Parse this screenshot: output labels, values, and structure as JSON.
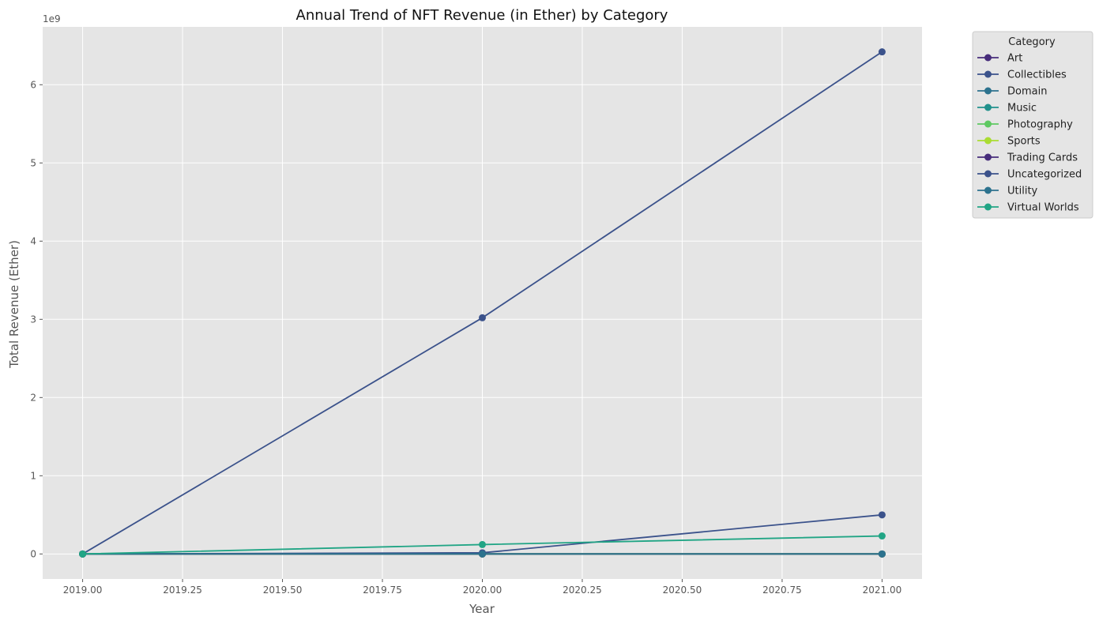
{
  "chart_data": {
    "type": "line",
    "title": "Annual Trend of NFT Revenue (in Ether) by Category",
    "xlabel": "Year",
    "ylabel": "Total Revenue (Ether)",
    "y_offset_label": "1e9",
    "xlim": [
      2018.9,
      2021.1
    ],
    "ylim": [
      -320000000,
      6740000000
    ],
    "x_ticks": [
      2019.0,
      2019.25,
      2019.5,
      2019.75,
      2020.0,
      2020.25,
      2020.5,
      2020.75,
      2021.0
    ],
    "x_tick_labels": [
      "2019.00",
      "2019.25",
      "2019.50",
      "2019.75",
      "2020.00",
      "2020.25",
      "2020.50",
      "2020.75",
      "2021.00"
    ],
    "y_ticks": [
      0,
      1000000000,
      2000000000,
      3000000000,
      4000000000,
      5000000000,
      6000000000
    ],
    "y_tick_labels": [
      "0",
      "1",
      "2",
      "3",
      "4",
      "5",
      "6"
    ],
    "grid": true,
    "legend_title": "Category",
    "legend_position": "outside upper right",
    "x": [
      2019,
      2020,
      2021
    ],
    "series": [
      {
        "name": "Art",
        "color": "#472d7b",
        "values": [
          0,
          0,
          0
        ]
      },
      {
        "name": "Collectibles",
        "color": "#3b528b",
        "values": [
          0,
          3020000000,
          6420000000
        ]
      },
      {
        "name": "Domain",
        "color": "#2c728e",
        "values": [
          0,
          0,
          0
        ]
      },
      {
        "name": "Music",
        "color": "#21918c",
        "values": [
          0,
          0,
          0
        ]
      },
      {
        "name": "Photography",
        "color": "#5ec962",
        "values": [
          0,
          0,
          0
        ]
      },
      {
        "name": "Sports",
        "color": "#aadc32",
        "values": [
          0,
          0,
          0
        ]
      },
      {
        "name": "Trading Cards",
        "color": "#472d7b",
        "values": [
          0,
          0,
          0
        ]
      },
      {
        "name": "Uncategorized",
        "color": "#3b528b",
        "values": [
          0,
          15000000,
          500000000
        ]
      },
      {
        "name": "Utility",
        "color": "#2c728e",
        "values": [
          0,
          0,
          0
        ]
      },
      {
        "name": "Virtual Worlds",
        "color": "#21a585",
        "values": [
          0,
          120000000,
          230000000
        ]
      }
    ]
  }
}
